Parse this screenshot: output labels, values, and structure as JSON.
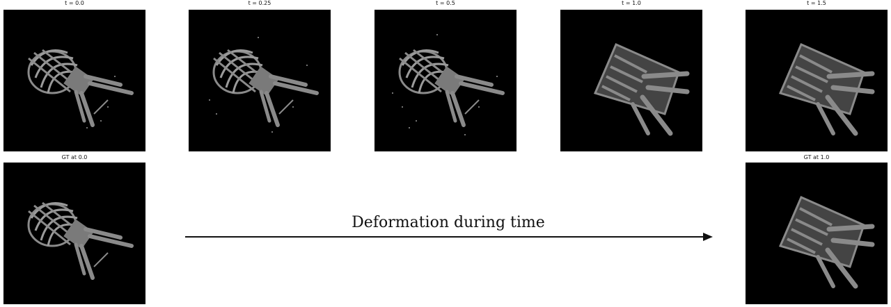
{
  "panels": {
    "t0": "t = 0.0",
    "t025": "t = 0.25",
    "t05": "t = 0.5",
    "t10": "t = 1.0",
    "t15": "t = 1.5",
    "gt0": "GT at 0.0",
    "gt1": "GT at 1.0"
  },
  "caption": "Deformation during time",
  "colors": {
    "frame_bg": "#000000",
    "model_gray": "#8a8a8a",
    "arrow": "#111111"
  }
}
